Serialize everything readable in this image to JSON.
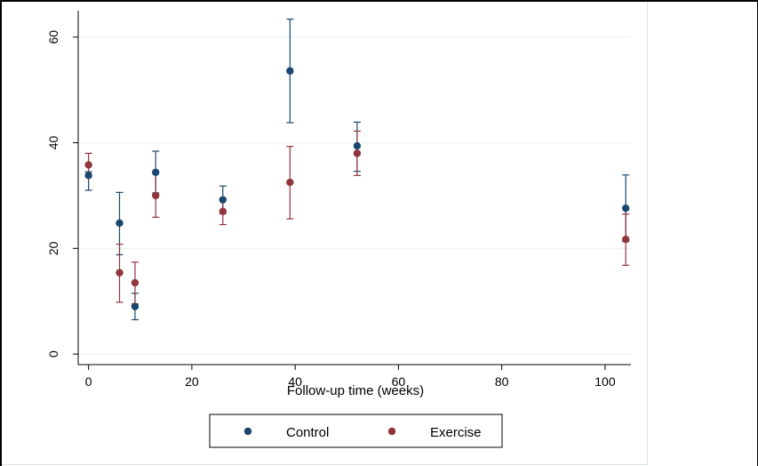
{
  "chart_data": {
    "type": "scatter",
    "xlabel": "Follow-up time (weeks)",
    "ylabel": "",
    "xlim": [
      -2,
      105
    ],
    "ylim": [
      -2,
      65
    ],
    "x_ticks": [
      0,
      20,
      40,
      60,
      80,
      100
    ],
    "y_ticks": [
      0,
      20,
      40,
      60
    ],
    "grid": "horizontal",
    "legend_position": "bottom",
    "series": [
      {
        "name": "Control",
        "color": "#1a476f",
        "points": [
          {
            "x": 0,
            "y": 33.8,
            "lower": 31.0,
            "upper": 34.5
          },
          {
            "x": 6,
            "y": 24.8,
            "lower": 18.8,
            "upper": 30.6
          },
          {
            "x": 9,
            "y": 9.0,
            "lower": 6.5,
            "upper": 11.5
          },
          {
            "x": 13,
            "y": 34.4,
            "lower": 30.5,
            "upper": 38.4
          },
          {
            "x": 26,
            "y": 29.2,
            "lower": 26.6,
            "upper": 31.8
          },
          {
            "x": 39,
            "y": 53.6,
            "lower": 43.8,
            "upper": 63.4
          },
          {
            "x": 52,
            "y": 39.4,
            "lower": 34.6,
            "upper": 43.9
          },
          {
            "x": 104,
            "y": 27.6,
            "lower": 21.3,
            "upper": 33.9
          }
        ]
      },
      {
        "name": "Exercise",
        "color": "#90353b",
        "points": [
          {
            "x": 0,
            "y": 35.8,
            "lower": 33.7,
            "upper": 38.0
          },
          {
            "x": 6,
            "y": 15.4,
            "lower": 9.8,
            "upper": 20.8
          },
          {
            "x": 9,
            "y": 13.5,
            "lower": 9.5,
            "upper": 17.4
          },
          {
            "x": 13,
            "y": 30.0,
            "lower": 25.9,
            "upper": 34.4
          },
          {
            "x": 26,
            "y": 27.0,
            "lower": 24.5,
            "upper": 29.5
          },
          {
            "x": 39,
            "y": 32.5,
            "lower": 25.6,
            "upper": 39.3
          },
          {
            "x": 52,
            "y": 38.0,
            "lower": 33.8,
            "upper": 42.2
          },
          {
            "x": 104,
            "y": 21.7,
            "lower": 16.8,
            "upper": 26.5
          }
        ]
      }
    ]
  }
}
